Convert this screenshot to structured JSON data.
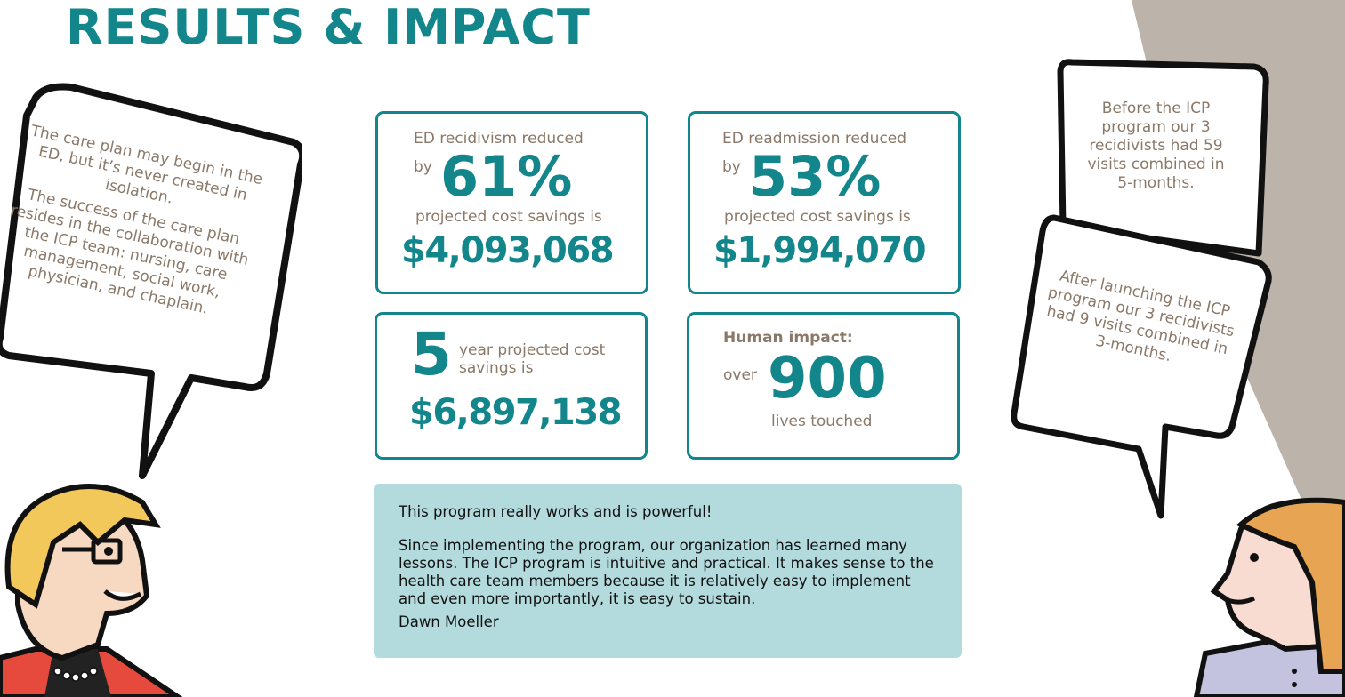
{
  "title": "RESULTS & IMPACT",
  "colors": {
    "accent": "#12868b",
    "quote_bg": "#b3dadd",
    "bubble_text": "#8a7868",
    "side_band": "#bcb3aa"
  },
  "left_bubble": {
    "line1": "The care plan may begin in the ED, but it’s never created in isolation.",
    "line2": "The success of the care plan resides in the collaboration with the ICP team: nursing, care management, social work, physician, and chaplain."
  },
  "right_bubbles": {
    "before": "Before the ICP program our 3 recidivists had 59 visits combined in 5-months.",
    "after": "After launching the ICP program our 3 recidivists had 9 visits combined in 3-months."
  },
  "cards": [
    {
      "label": "ED recidivism reduced",
      "by": "by",
      "value": "61%",
      "savings_label": "projected cost savings is",
      "savings": "$4,093,068"
    },
    {
      "label": "ED readmission reduced",
      "by": "by",
      "value": "53%",
      "savings_label": "projected cost savings is",
      "savings": "$1,994,070"
    },
    {
      "value": "5",
      "label": "year projected cost savings is",
      "savings": "$6,897,138"
    },
    {
      "label": "Human impact:",
      "over": "over",
      "value": "900",
      "sub": "lives touched"
    }
  ],
  "quote": {
    "headline": "This program really works and is powerful!",
    "body": "Since implementing the program, our organization has learned many lessons. The ICP program is intuitive and practical. It makes sense to the health care team members because it is relatively easy to implement and even more importantly, it is easy to sustain.",
    "author": "Dawn Moeller"
  }
}
